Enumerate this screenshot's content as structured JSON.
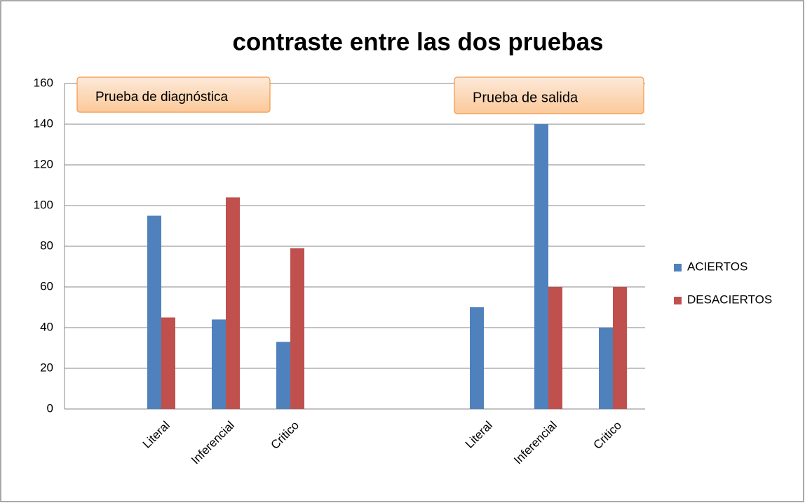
{
  "chart_data": {
    "type": "bar",
    "title": "contraste entre las dos pruebas",
    "categories": [
      null,
      "Literal",
      "Inferencial",
      "Critico",
      null,
      null,
      "Literal",
      "Inferencial",
      "Critico"
    ],
    "series": [
      {
        "name": "ACIERTOS",
        "color": "#4f81bd",
        "values": [
          null,
          95,
          44,
          33,
          null,
          null,
          50,
          140,
          40
        ]
      },
      {
        "name": "DESACIERTOS",
        "color": "#c0504d",
        "values": [
          null,
          45,
          104,
          79,
          null,
          null,
          0,
          60,
          60
        ]
      }
    ],
    "annotations": [
      "Prueba de diagnóstica",
      "Prueba de salida"
    ],
    "ylim": [
      0,
      160
    ],
    "yticks": [
      0,
      20,
      40,
      60,
      80,
      100,
      120,
      140,
      160
    ],
    "grid": true,
    "legend": "right"
  }
}
